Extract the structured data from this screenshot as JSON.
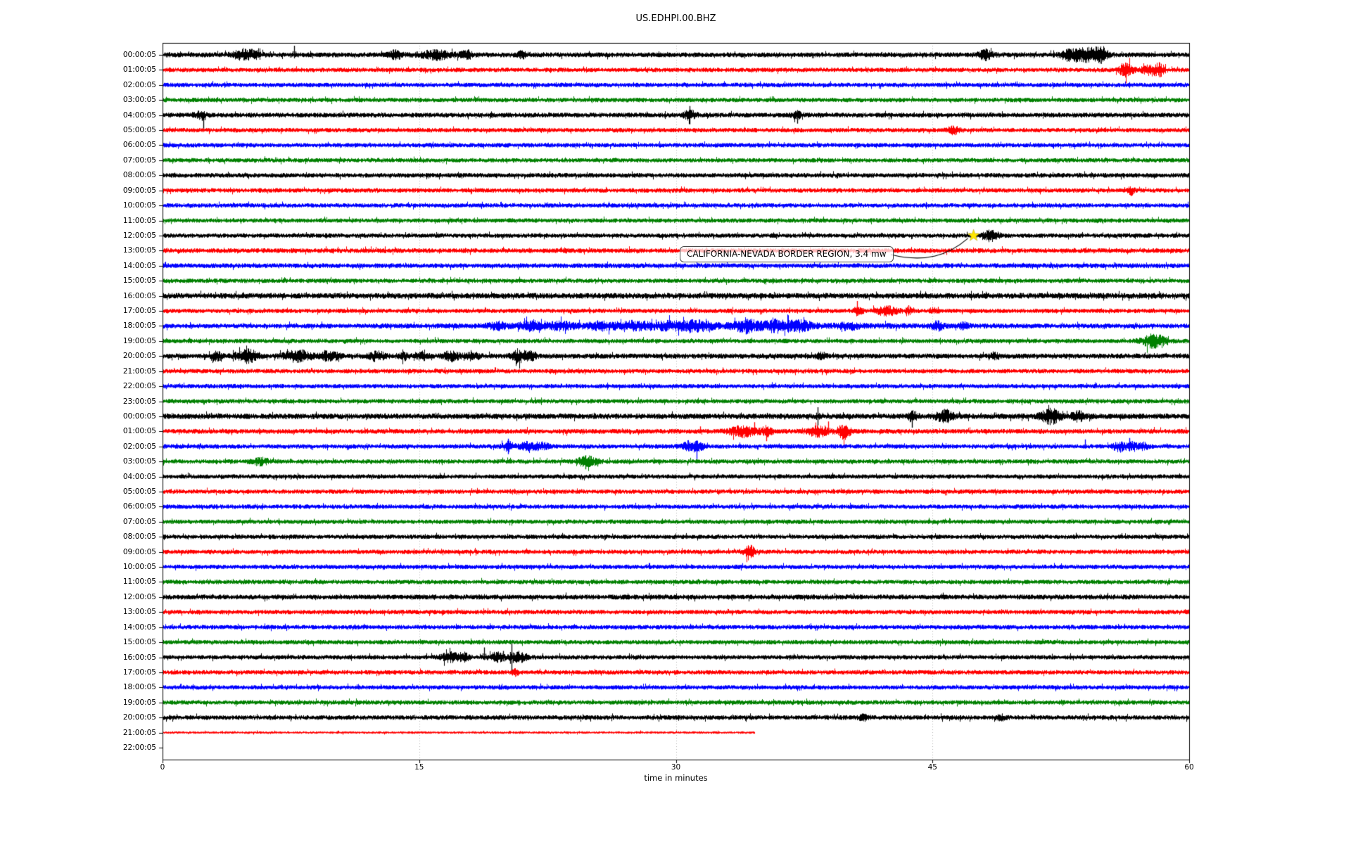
{
  "chart_data": {
    "type": "line",
    "subtype": "helicorder_dayplot",
    "title": "US.EDHPI.00.BHZ",
    "background": "#ffffff",
    "axes": {
      "xlabel": "time in minutes",
      "xlim": [
        0,
        60
      ],
      "xticks": [
        0,
        15,
        30,
        45,
        60
      ],
      "grid_minutes": [
        15,
        30,
        45
      ],
      "grid_style": "dotted",
      "grid_color": "#b0b0b0"
    },
    "trace_colors": [
      "#000000",
      "#ff0000",
      "#0000ff",
      "#008000"
    ],
    "rows": [
      {
        "label": "00:00:05"
      },
      {
        "label": "01:00:05"
      },
      {
        "label": "02:00:05"
      },
      {
        "label": "03:00:05"
      },
      {
        "label": "04:00:05"
      },
      {
        "label": "05:00:05"
      },
      {
        "label": "06:00:05"
      },
      {
        "label": "07:00:05"
      },
      {
        "label": "08:00:05"
      },
      {
        "label": "09:00:05"
      },
      {
        "label": "10:00:05"
      },
      {
        "label": "11:00:05"
      },
      {
        "label": "12:00:05"
      },
      {
        "label": "13:00:05"
      },
      {
        "label": "14:00:05"
      },
      {
        "label": "15:00:05"
      },
      {
        "label": "16:00:05"
      },
      {
        "label": "17:00:05"
      },
      {
        "label": "18:00:05"
      },
      {
        "label": "19:00:05"
      },
      {
        "label": "20:00:05"
      },
      {
        "label": "21:00:05"
      },
      {
        "label": "22:00:05"
      },
      {
        "label": "23:00:05"
      },
      {
        "label": "00:00:05"
      },
      {
        "label": "01:00:05"
      },
      {
        "label": "02:00:05"
      },
      {
        "label": "03:00:05"
      },
      {
        "label": "04:00:05"
      },
      {
        "label": "05:00:05"
      },
      {
        "label": "06:00:05"
      },
      {
        "label": "07:00:05"
      },
      {
        "label": "08:00:05"
      },
      {
        "label": "09:00:05"
      },
      {
        "label": "10:00:05"
      },
      {
        "label": "11:00:05"
      },
      {
        "label": "12:00:05"
      },
      {
        "label": "13:00:05"
      },
      {
        "label": "14:00:05"
      },
      {
        "label": "15:00:05"
      },
      {
        "label": "16:00:05"
      },
      {
        "label": "17:00:05"
      },
      {
        "label": "18:00:05"
      },
      {
        "label": "19:00:05"
      },
      {
        "label": "20:00:05"
      },
      {
        "label": "21:00:05"
      },
      {
        "label": "22:00:05"
      }
    ],
    "row_amps": {
      "0": 1.12,
      "4": 1.1,
      "8": 1.05,
      "13": 1.08,
      "14": 1.08,
      "16": 1.28,
      "18": 1.08,
      "20": 1.15,
      "24": 1.25,
      "25": 1.1,
      "36": 1.12,
      "44": 1.05,
      "45": 0.55
    },
    "partial_end_minute": {
      "45": 34.6
    },
    "no_data_rows": [
      46
    ],
    "events": [
      {
        "r": 0,
        "t": 4.9,
        "type": "burst",
        "d": 1.0,
        "a": 3.0
      },
      {
        "r": 0,
        "t": 7.7,
        "type": "spike",
        "up": 13,
        "dn": 5
      },
      {
        "r": 0,
        "t": 13.6,
        "type": "burst",
        "d": 0.5,
        "a": 2.4
      },
      {
        "r": 0,
        "t": 16.0,
        "type": "burst",
        "d": 1.4,
        "a": 2.4
      },
      {
        "r": 0,
        "t": 17.8,
        "type": "burst",
        "d": 0.5,
        "a": 2.2
      },
      {
        "r": 0,
        "t": 21.0,
        "type": "burst",
        "d": 0.4,
        "a": 2.0
      },
      {
        "r": 0,
        "t": 48.1,
        "type": "spike",
        "up": 9,
        "dn": 9
      },
      {
        "r": 0,
        "t": 48.1,
        "type": "burst",
        "d": 0.6,
        "a": 2.6
      },
      {
        "r": 0,
        "t": 53.0,
        "type": "burst",
        "d": 0.7,
        "a": 3.0
      },
      {
        "r": 0,
        "t": 54.1,
        "type": "burst",
        "d": 1.1,
        "a": 3.4
      },
      {
        "r": 0,
        "t": 54.9,
        "type": "burst",
        "d": 0.5,
        "a": 3.0
      },
      {
        "r": 1,
        "t": 56.3,
        "type": "burst",
        "d": 0.5,
        "a": 4.5
      },
      {
        "r": 1,
        "t": 56.3,
        "type": "spike",
        "up": 10,
        "dn": 10
      },
      {
        "r": 1,
        "t": 57.7,
        "type": "burst",
        "d": 0.7,
        "a": 3.0
      },
      {
        "r": 1,
        "t": 58.3,
        "type": "burst",
        "d": 0.4,
        "a": 3.0
      },
      {
        "r": 4,
        "t": 2.2,
        "type": "burst",
        "d": 0.4,
        "a": 2.2
      },
      {
        "r": 4,
        "t": 2.4,
        "type": "spike",
        "up": 4,
        "dn": 20
      },
      {
        "r": 4,
        "t": 30.8,
        "type": "spike",
        "up": 13,
        "dn": 13
      },
      {
        "r": 4,
        "t": 30.8,
        "type": "burst",
        "d": 0.5,
        "a": 2.5
      },
      {
        "r": 4,
        "t": 37.1,
        "type": "spike",
        "up": 4,
        "dn": 12
      },
      {
        "r": 4,
        "t": 37.1,
        "type": "burst",
        "d": 0.4,
        "a": 2.2
      },
      {
        "r": 5,
        "t": 46.2,
        "type": "burst",
        "d": 0.5,
        "a": 2.4
      },
      {
        "r": 9,
        "t": 56.6,
        "type": "burst",
        "d": 0.25,
        "a": 2.6
      },
      {
        "r": 12,
        "t": 48.4,
        "type": "burst",
        "d": 0.6,
        "a": 3.2
      },
      {
        "r": 12,
        "t": 48.4,
        "type": "spike",
        "up": 6,
        "dn": 6
      },
      {
        "r": 17,
        "t": 40.6,
        "type": "spike",
        "up": 14,
        "dn": 7
      },
      {
        "r": 17,
        "t": 40.6,
        "type": "burst",
        "d": 0.4,
        "a": 2.6
      },
      {
        "r": 17,
        "t": 42.3,
        "type": "burst",
        "d": 0.9,
        "a": 2.8
      },
      {
        "r": 17,
        "t": 43.6,
        "type": "spike",
        "up": 8,
        "dn": 3
      },
      {
        "r": 17,
        "t": 43.6,
        "type": "burst",
        "d": 0.3,
        "a": 2.2
      },
      {
        "r": 17,
        "t": 45.1,
        "type": "burst",
        "d": 0.4,
        "a": 2.0
      },
      {
        "r": 18,
        "t": 31.0,
        "type": "burst",
        "d": 18.0,
        "a": 1.5
      },
      {
        "r": 18,
        "t": 19.6,
        "type": "burst",
        "d": 0.8,
        "a": 2.0
      },
      {
        "r": 18,
        "t": 21.5,
        "type": "burst",
        "d": 0.9,
        "a": 2.3
      },
      {
        "r": 18,
        "t": 23.2,
        "type": "burst",
        "d": 1.2,
        "a": 2.0
      },
      {
        "r": 18,
        "t": 25.6,
        "type": "burst",
        "d": 0.9,
        "a": 2.0
      },
      {
        "r": 18,
        "t": 27.6,
        "type": "burst",
        "d": 1.6,
        "a": 2.1
      },
      {
        "r": 18,
        "t": 29.6,
        "type": "burst",
        "d": 0.9,
        "a": 2.0
      },
      {
        "r": 18,
        "t": 31.1,
        "type": "burst",
        "d": 1.3,
        "a": 2.4
      },
      {
        "r": 18,
        "t": 34.1,
        "type": "spike",
        "up": 4,
        "dn": 12
      },
      {
        "r": 18,
        "t": 34.1,
        "type": "burst",
        "d": 0.9,
        "a": 2.8
      },
      {
        "r": 18,
        "t": 35.9,
        "type": "burst",
        "d": 1.3,
        "a": 2.8
      },
      {
        "r": 18,
        "t": 37.3,
        "type": "burst",
        "d": 0.9,
        "a": 2.4
      },
      {
        "r": 18,
        "t": 40.1,
        "type": "burst",
        "d": 0.7,
        "a": 2.0
      },
      {
        "r": 18,
        "t": 45.3,
        "type": "burst",
        "d": 0.5,
        "a": 2.4
      },
      {
        "r": 18,
        "t": 46.8,
        "type": "burst",
        "d": 0.4,
        "a": 2.0
      },
      {
        "r": 19,
        "t": 57.9,
        "type": "burst",
        "d": 1.0,
        "a": 3.6
      },
      {
        "r": 19,
        "t": 57.6,
        "type": "spike",
        "up": 5,
        "dn": 5
      },
      {
        "r": 20,
        "t": 3.2,
        "type": "burst",
        "d": 0.4,
        "a": 2.3
      },
      {
        "r": 20,
        "t": 4.9,
        "type": "burst",
        "d": 0.9,
        "a": 3.2
      },
      {
        "r": 20,
        "t": 4.8,
        "type": "spike",
        "up": 7,
        "dn": 9
      },
      {
        "r": 20,
        "t": 7.9,
        "type": "burst",
        "d": 1.1,
        "a": 2.8
      },
      {
        "r": 20,
        "t": 9.5,
        "type": "spike",
        "up": 8,
        "dn": 8
      },
      {
        "r": 20,
        "t": 9.8,
        "type": "burst",
        "d": 0.8,
        "a": 2.4
      },
      {
        "r": 20,
        "t": 12.5,
        "type": "burst",
        "d": 0.7,
        "a": 2.4
      },
      {
        "r": 20,
        "t": 14.1,
        "type": "burst",
        "d": 0.4,
        "a": 2.0
      },
      {
        "r": 20,
        "t": 15.2,
        "type": "burst",
        "d": 0.5,
        "a": 2.2
      },
      {
        "r": 20,
        "t": 16.9,
        "type": "spike",
        "up": 4,
        "dn": 9
      },
      {
        "r": 20,
        "t": 16.9,
        "type": "burst",
        "d": 0.7,
        "a": 2.4
      },
      {
        "r": 20,
        "t": 18.1,
        "type": "burst",
        "d": 0.5,
        "a": 2.4
      },
      {
        "r": 20,
        "t": 20.9,
        "type": "burst",
        "d": 0.8,
        "a": 2.8
      },
      {
        "r": 20,
        "t": 21.6,
        "type": "burst",
        "d": 0.3,
        "a": 2.0
      },
      {
        "r": 20,
        "t": 38.5,
        "type": "burst",
        "d": 0.4,
        "a": 2.0
      },
      {
        "r": 20,
        "t": 48.6,
        "type": "burst",
        "d": 0.3,
        "a": 2.0
      },
      {
        "r": 24,
        "t": 38.3,
        "type": "spike",
        "up": 13,
        "dn": 13
      },
      {
        "r": 24,
        "t": 43.8,
        "type": "spike",
        "up": 8,
        "dn": 16
      },
      {
        "r": 24,
        "t": 43.8,
        "type": "burst",
        "d": 0.4,
        "a": 2.4
      },
      {
        "r": 24,
        "t": 45.7,
        "type": "burst",
        "d": 0.7,
        "a": 2.8
      },
      {
        "r": 24,
        "t": 51.9,
        "type": "burst",
        "d": 0.8,
        "a": 3.2
      },
      {
        "r": 24,
        "t": 51.8,
        "type": "spike",
        "up": 8,
        "dn": 4
      },
      {
        "r": 24,
        "t": 53.5,
        "type": "burst",
        "d": 0.5,
        "a": 2.4
      },
      {
        "r": 25,
        "t": 31.4,
        "type": "spike",
        "up": 7,
        "dn": 3
      },
      {
        "r": 25,
        "t": 33.9,
        "type": "burst",
        "d": 1.1,
        "a": 2.8
      },
      {
        "r": 25,
        "t": 34.6,
        "type": "spike",
        "up": 13,
        "dn": 4
      },
      {
        "r": 25,
        "t": 35.3,
        "type": "spike",
        "up": 4,
        "dn": 14
      },
      {
        "r": 25,
        "t": 35.3,
        "type": "burst",
        "d": 0.4,
        "a": 2.6
      },
      {
        "r": 25,
        "t": 38.3,
        "type": "burst",
        "d": 0.8,
        "a": 2.8
      },
      {
        "r": 25,
        "t": 38.9,
        "type": "spike",
        "up": 14,
        "dn": 5
      },
      {
        "r": 25,
        "t": 39.8,
        "type": "burst",
        "d": 0.5,
        "a": 3.6
      },
      {
        "r": 26,
        "t": 20.2,
        "type": "spike",
        "up": 11,
        "dn": 11
      },
      {
        "r": 26,
        "t": 20.2,
        "type": "burst",
        "d": 0.5,
        "a": 2.6
      },
      {
        "r": 26,
        "t": 21.2,
        "type": "burst",
        "d": 0.5,
        "a": 2.4
      },
      {
        "r": 26,
        "t": 22.1,
        "type": "burst",
        "d": 0.8,
        "a": 2.4
      },
      {
        "r": 26,
        "t": 30.7,
        "type": "burst",
        "d": 0.6,
        "a": 2.8
      },
      {
        "r": 26,
        "t": 31.2,
        "type": "spike",
        "up": 5,
        "dn": 18
      },
      {
        "r": 26,
        "t": 31.3,
        "type": "burst",
        "d": 0.5,
        "a": 2.8
      },
      {
        "r": 26,
        "t": 53.9,
        "type": "spike",
        "up": 10,
        "dn": 3
      },
      {
        "r": 26,
        "t": 55.9,
        "type": "burst",
        "d": 0.5,
        "a": 2.8
      },
      {
        "r": 26,
        "t": 56.5,
        "type": "spike",
        "up": 12,
        "dn": 5
      },
      {
        "r": 26,
        "t": 56.6,
        "type": "burst",
        "d": 0.5,
        "a": 2.6
      },
      {
        "r": 26,
        "t": 57.3,
        "type": "burst",
        "d": 0.4,
        "a": 2.2
      },
      {
        "r": 27,
        "t": 5.7,
        "type": "burst",
        "d": 0.7,
        "a": 2.3
      },
      {
        "r": 27,
        "t": 24.8,
        "type": "burst",
        "d": 0.9,
        "a": 2.8
      },
      {
        "r": 27,
        "t": 24.7,
        "type": "spike",
        "up": 9,
        "dn": 11
      },
      {
        "r": 27,
        "t": 25.4,
        "type": "spike",
        "up": 3,
        "dn": 7
      },
      {
        "r": 33,
        "t": 34.3,
        "type": "burst",
        "d": 0.4,
        "a": 3.4
      },
      {
        "r": 33,
        "t": 34.3,
        "type": "spike",
        "up": 4,
        "dn": 4
      },
      {
        "r": 40,
        "t": 16.8,
        "type": "burst",
        "d": 0.8,
        "a": 2.8
      },
      {
        "r": 40,
        "t": 17.6,
        "type": "burst",
        "d": 0.4,
        "a": 2.4
      },
      {
        "r": 40,
        "t": 18.8,
        "type": "spike",
        "up": 14,
        "dn": 4
      },
      {
        "r": 40,
        "t": 19.5,
        "type": "burst",
        "d": 0.6,
        "a": 2.8
      },
      {
        "r": 40,
        "t": 19.9,
        "type": "spike",
        "up": 9,
        "dn": 4
      },
      {
        "r": 40,
        "t": 20.4,
        "type": "spike",
        "up": 19,
        "dn": 23
      },
      {
        "r": 40,
        "t": 20.8,
        "type": "burst",
        "d": 0.7,
        "a": 3.0
      },
      {
        "r": 41,
        "t": 20.6,
        "type": "burst",
        "d": 0.3,
        "a": 2.0
      },
      {
        "r": 44,
        "t": 41.0,
        "type": "burst",
        "d": 0.5,
        "a": 1.8
      },
      {
        "r": 44,
        "t": 49.0,
        "type": "burst",
        "d": 0.4,
        "a": 1.8
      }
    ],
    "annotation": {
      "text": "CALIFORNIA-NEVADA BORDER REGION, 3.4 mw",
      "marker": {
        "row_index": 12,
        "minute": 47.4,
        "symbol": "star",
        "color": "#ffe600"
      }
    }
  }
}
